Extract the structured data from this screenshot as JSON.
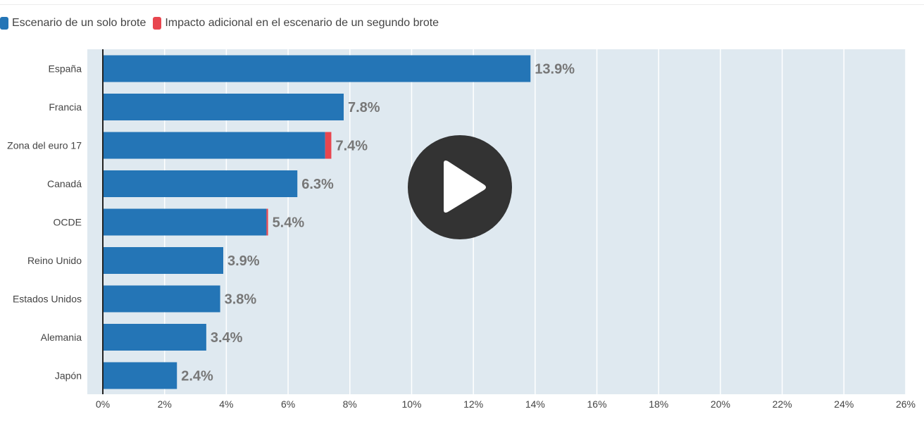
{
  "colors": {
    "series_primary": "#2475b6",
    "series_secondary": "#e8464f",
    "plot_background": "#dfe9f0",
    "play_button": "#333333"
  },
  "legend": {
    "items": [
      {
        "label": "Escenario de un solo brote",
        "color": "#2475b6"
      },
      {
        "label": "Impacto adicional en el escenario de un segundo brote",
        "color": "#e8464f"
      }
    ]
  },
  "play_button": {
    "icon": "play-icon"
  },
  "chart_data": {
    "type": "bar",
    "orientation": "horizontal",
    "stacked": true,
    "categories": [
      "España",
      "Francia",
      "Zona del euro 17",
      "Canadá",
      "OCDE",
      "Reino Unido",
      "Estados Unidos",
      "Alemania",
      "Japón"
    ],
    "series": [
      {
        "name": "Escenario de un solo brote",
        "values": [
          13.85,
          7.8,
          7.2,
          6.3,
          5.3,
          3.9,
          3.8,
          3.35,
          2.4
        ]
      },
      {
        "name": "Impacto adicional en el escenario de un segundo brote",
        "values": [
          0,
          0,
          0.2,
          0,
          0.05,
          0,
          0,
          0,
          0
        ]
      }
    ],
    "data_labels": [
      "13.9%",
      "7.8%",
      "7.4%",
      "6.3%",
      "5.4%",
      "3.9%",
      "3.8%",
      "3.4%",
      "2.4%"
    ],
    "xlim": [
      0,
      26
    ],
    "x_ticks": [
      "0%",
      "2%",
      "4%",
      "6%",
      "8%",
      "10%",
      "12%",
      "14%",
      "16%",
      "18%",
      "20%",
      "22%",
      "24%",
      "26%"
    ],
    "x_tick_values": [
      0,
      2,
      4,
      6,
      8,
      10,
      12,
      14,
      16,
      18,
      20,
      22,
      24,
      26
    ],
    "grid": true,
    "legend_position": "top-left"
  }
}
